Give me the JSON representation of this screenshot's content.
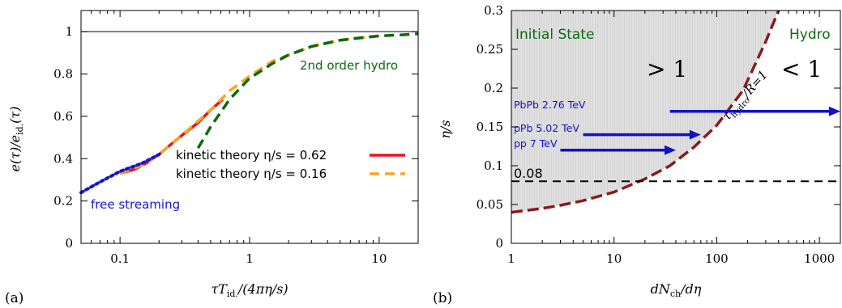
{
  "chart_data": [
    {
      "type": "line",
      "panel_label": "(a)",
      "xlabel": "τT_id./(4πη/s)",
      "ylabel": "e(τ)/e_id.(τ)",
      "xscale": "log",
      "xlim": [
        0.05,
        20
      ],
      "ylim": [
        0,
        1.1
      ],
      "x_ticks": [
        {
          "v": 0.1,
          "label": "0.1"
        },
        {
          "v": 1,
          "label": "1"
        },
        {
          "v": 10,
          "label": "10"
        }
      ],
      "y_ticks": [
        {
          "v": 0,
          "label": "0"
        },
        {
          "v": 0.2,
          "label": "0.2"
        },
        {
          "v": 0.4,
          "label": "0.4"
        },
        {
          "v": 0.6,
          "label": "0.6"
        },
        {
          "v": 0.8,
          "label": "0.8"
        },
        {
          "v": 1,
          "label": "1"
        }
      ],
      "reference_line": {
        "y": 1,
        "color": "#000000"
      },
      "legend_placement": "bottom-right",
      "series": [
        {
          "name": "kinetic theory η/s = 0.62",
          "color": "#e8141c",
          "style": "solid",
          "x": [
            0.1,
            0.13,
            0.16,
            0.2,
            0.25,
            0.3,
            0.4,
            0.5,
            0.62
          ],
          "y": [
            0.33,
            0.35,
            0.38,
            0.42,
            0.47,
            0.51,
            0.57,
            0.63,
            0.68
          ]
        },
        {
          "name": "kinetic theory η/s = 0.16",
          "color": "#f5a623",
          "style": "dashed",
          "x": [
            0.1,
            0.15,
            0.2,
            0.3,
            0.5,
            0.7,
            1,
            1.5,
            2,
            3,
            5,
            7,
            10
          ],
          "y": [
            0.33,
            0.37,
            0.42,
            0.51,
            0.63,
            0.72,
            0.79,
            0.86,
            0.89,
            0.93,
            0.96,
            0.97,
            0.98
          ]
        },
        {
          "name": "free streaming",
          "color": "#1515d0",
          "style": "dotted",
          "x": [
            0.05,
            0.07,
            0.1,
            0.15,
            0.2
          ],
          "y": [
            0.24,
            0.29,
            0.34,
            0.38,
            0.42
          ]
        },
        {
          "name": "2nd order hydro",
          "color": "#0c6a0c",
          "style": "dashed",
          "x": [
            0.4,
            0.5,
            0.7,
            1,
            1.5,
            2,
            3,
            5,
            7,
            10,
            15,
            20
          ],
          "y": [
            0.45,
            0.55,
            0.68,
            0.78,
            0.85,
            0.89,
            0.93,
            0.96,
            0.97,
            0.98,
            0.985,
            0.99
          ]
        }
      ],
      "annotations": [
        {
          "text": "free streaming",
          "color": "#1515d0"
        },
        {
          "text": "2nd order hydro",
          "color": "#0c6a0c"
        }
      ]
    },
    {
      "type": "area",
      "panel_label": "(b)",
      "xlabel": "dN_ch/dη",
      "ylabel": "η/s",
      "xscale": "log",
      "xlim": [
        1,
        1600
      ],
      "ylim": [
        0,
        0.3
      ],
      "x_ticks": [
        {
          "v": 1,
          "label": "1"
        },
        {
          "v": 10,
          "label": "10"
        },
        {
          "v": 100,
          "label": "100"
        },
        {
          "v": 1000,
          "label": "1000"
        }
      ],
      "y_ticks": [
        {
          "v": 0,
          "label": "0"
        },
        {
          "v": 0.05,
          "label": "0.05"
        },
        {
          "v": 0.1,
          "label": "0.1"
        },
        {
          "v": 0.15,
          "label": "0.15"
        },
        {
          "v": 0.2,
          "label": "0.2"
        },
        {
          "v": 0.25,
          "label": "0.25"
        },
        {
          "v": 0.3,
          "label": "0.3"
        }
      ],
      "boundary_curve": {
        "label": "τhydro/R=1",
        "color": "#8b1a1a",
        "x": [
          1,
          2,
          3,
          5,
          10,
          20,
          35,
          60,
          100,
          180,
          300,
          400
        ],
        "y": [
          0.04,
          0.045,
          0.049,
          0.055,
          0.066,
          0.083,
          0.1,
          0.124,
          0.152,
          0.197,
          0.26,
          0.3
        ]
      },
      "reference_line": {
        "y": 0.08,
        "label": "0.08",
        "color": "#000000"
      },
      "regions": [
        {
          "text": "Initial State",
          "color": "#0c6a0c"
        },
        {
          "text": "Hydro",
          "color": "#0c6a0c"
        },
        {
          "text": "> 1",
          "color": "#000000"
        },
        {
          "text": "< 1",
          "color": "#000000"
        }
      ],
      "arrows": [
        {
          "label": "PbPb 2.76 TeV",
          "x_start": 35,
          "x_end": 1600,
          "y": 0.17,
          "color": "#1111c8"
        },
        {
          "label": "pPb 5.02 TeV",
          "x_start": 5,
          "x_end": 70,
          "y": 0.14,
          "color": "#1111c8"
        },
        {
          "label": "pp 7 TeV",
          "x_start": 3,
          "x_end": 40,
          "y": 0.12,
          "color": "#1111c8"
        }
      ]
    }
  ]
}
